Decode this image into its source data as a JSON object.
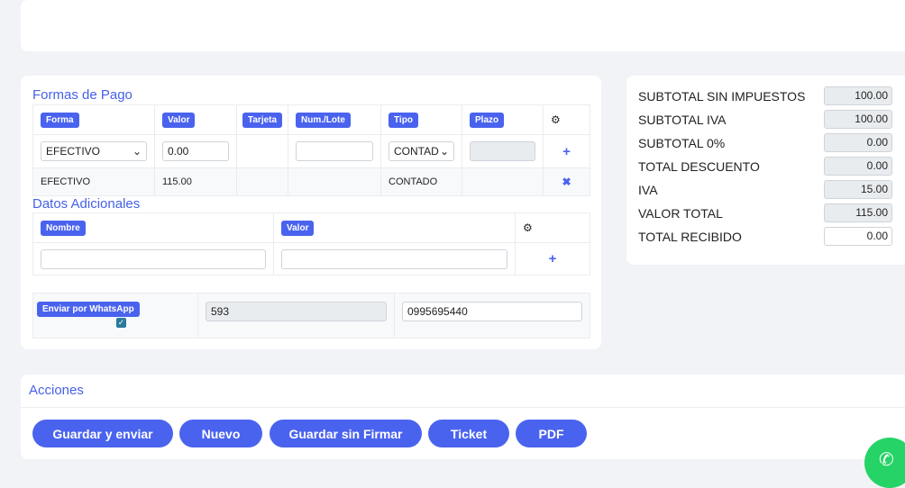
{
  "formas_pago": {
    "title": "Formas de Pago",
    "headers": [
      "Forma",
      "Valor",
      "Tarjeta",
      "Num./Lote",
      "Tipo",
      "Plazo"
    ],
    "input": {
      "forma": "EFECTIVO",
      "valor": "0.00",
      "num_lote": "",
      "tipo": "CONTAD",
      "plazo": ""
    },
    "rows": [
      {
        "forma": "EFECTIVO",
        "valor": "115.00",
        "tarjeta": "",
        "num_lote": "",
        "tipo": "CONTADO",
        "plazo": ""
      }
    ]
  },
  "datos_adicionales": {
    "title": "Datos Adicionales",
    "headers": [
      "Nombre",
      "Valor"
    ],
    "nombre": "",
    "valor": ""
  },
  "whatsapp": {
    "label": "Enviar por WhatsApp",
    "checked": true,
    "codigo": "593",
    "telefono": "0995695440"
  },
  "resumen": [
    {
      "label": "SUBTOTAL SIN IMPUESTOS",
      "value": "100.00"
    },
    {
      "label": "SUBTOTAL IVA",
      "value": "100.00"
    },
    {
      "label": "SUBTOTAL 0%",
      "value": "0.00"
    },
    {
      "label": "TOTAL DESCUENTO",
      "value": "0.00"
    },
    {
      "label": "IVA",
      "value": "15.00"
    },
    {
      "label": "VALOR TOTAL",
      "value": "115.00"
    },
    {
      "label": "TOTAL RECIBIDO",
      "value": "0.00"
    }
  ],
  "acciones": {
    "title": "Acciones",
    "buttons": [
      "Guardar y enviar",
      "Nuevo",
      "Guardar sin Firmar",
      "Ticket",
      "PDF"
    ]
  },
  "colors": {
    "accent": "#4a63ee",
    "whatsapp": "#25d366"
  }
}
